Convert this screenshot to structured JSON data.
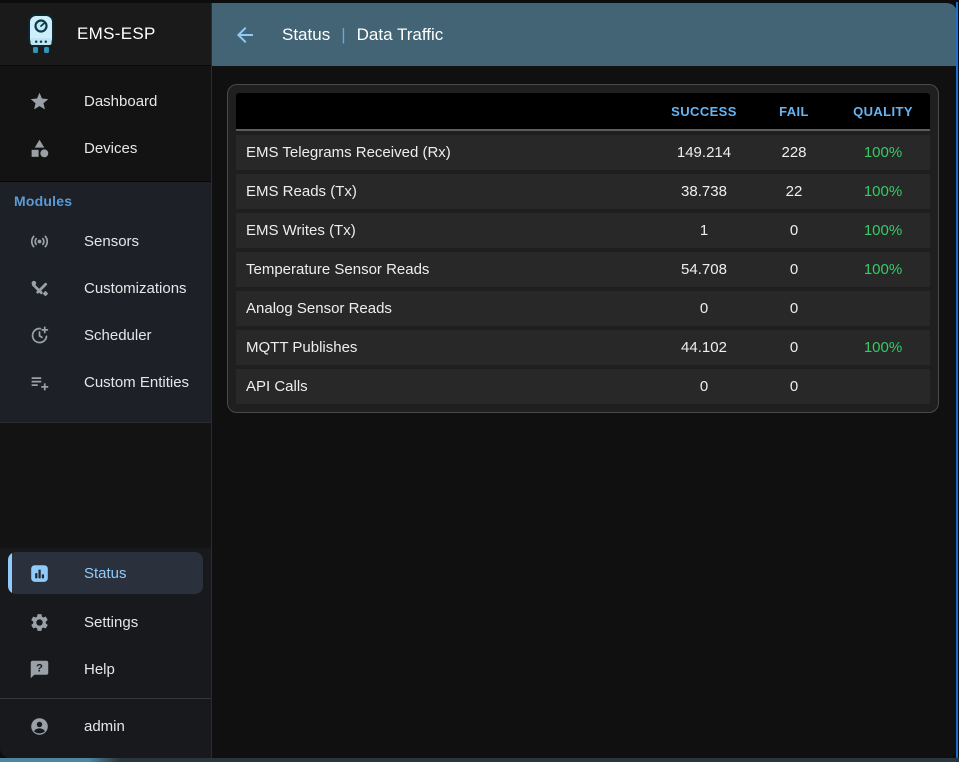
{
  "app": {
    "title": "EMS-ESP"
  },
  "appbar": {
    "section": "Status",
    "separator": "|",
    "page": "Data Traffic"
  },
  "sidebar": {
    "top_items": [
      {
        "label": "Dashboard",
        "icon": "star-icon"
      },
      {
        "label": "Devices",
        "icon": "shapes-icon"
      }
    ],
    "modules": {
      "label": "Modules",
      "items": [
        {
          "label": "Sensors",
          "icon": "sensors-icon"
        },
        {
          "label": "Customizations",
          "icon": "tools-icon"
        },
        {
          "label": "Scheduler",
          "icon": "clock-plus-icon"
        },
        {
          "label": "Custom Entities",
          "icon": "list-plus-icon"
        }
      ]
    },
    "bottom_items": [
      {
        "label": "Status",
        "icon": "bar-chart-icon",
        "selected": true
      },
      {
        "label": "Settings",
        "icon": "gear-icon",
        "selected": false
      },
      {
        "label": "Help",
        "icon": "help-bubble-icon",
        "selected": false
      }
    ],
    "user": {
      "label": "admin",
      "icon": "account-icon"
    }
  },
  "main": {
    "table": {
      "columns": {
        "name": "",
        "success": "SUCCESS",
        "fail": "FAIL",
        "quality": "QUALITY"
      },
      "rows": [
        {
          "name": "EMS Telegrams Received (Rx)",
          "success": "149.214",
          "fail": "228",
          "quality": "100%"
        },
        {
          "name": "EMS Reads (Tx)",
          "success": "38.738",
          "fail": "22",
          "quality": "100%"
        },
        {
          "name": "EMS Writes (Tx)",
          "success": "1",
          "fail": "0",
          "quality": "100%"
        },
        {
          "name": "Temperature Sensor Reads",
          "success": "54.708",
          "fail": "0",
          "quality": "100%"
        },
        {
          "name": "Analog Sensor Reads",
          "success": "0",
          "fail": "0",
          "quality": ""
        },
        {
          "name": "MQTT Publishes",
          "success": "44.102",
          "fail": "0",
          "quality": "100%"
        },
        {
          "name": "API Calls",
          "success": "0",
          "fail": "0",
          "quality": ""
        }
      ]
    }
  },
  "colors": {
    "accent": "#90caf9",
    "link_blue": "#64b5f6",
    "header_teal": "#426475",
    "quality_green": "#33cc66"
  }
}
